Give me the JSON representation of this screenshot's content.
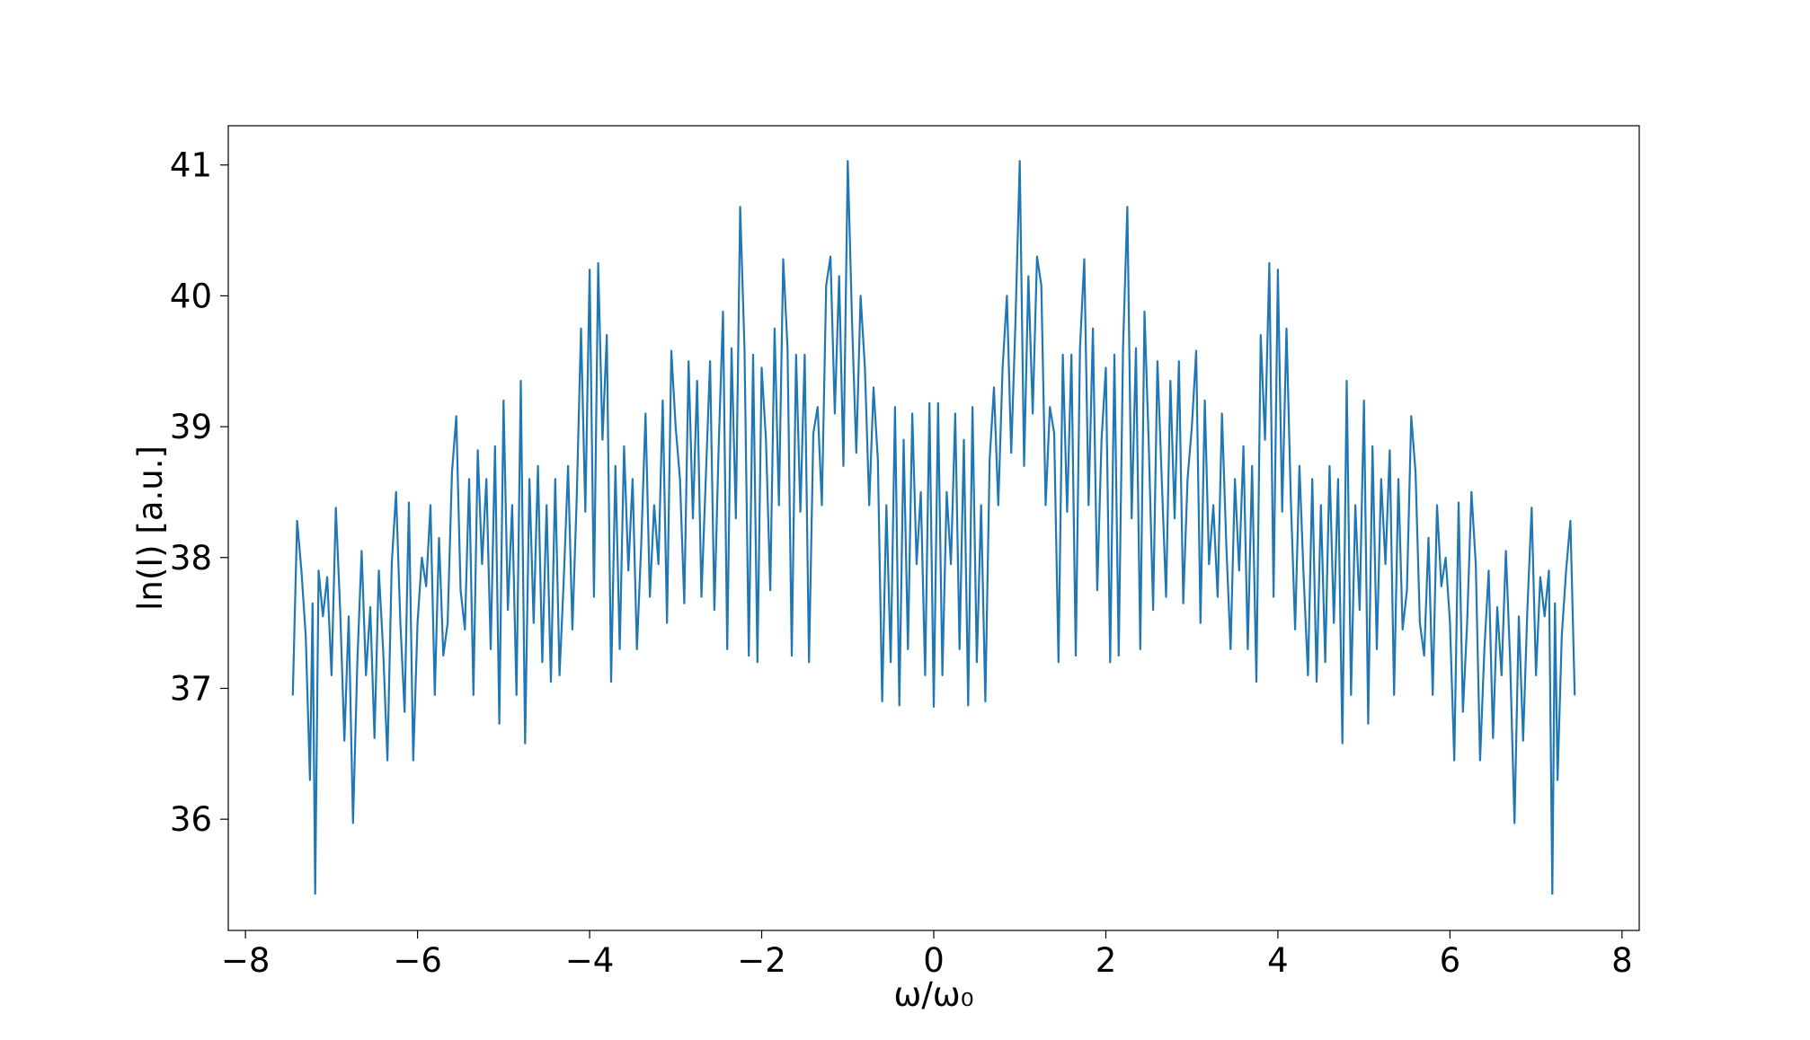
{
  "chart_data": {
    "type": "line",
    "title": "",
    "xlabel": "ω/ω₀",
    "ylabel": "ln(I) [a.u.]",
    "xlim": [
      -8.2,
      8.2
    ],
    "ylim": [
      35.15,
      41.3
    ],
    "xticks": [
      -8,
      -6,
      -4,
      -2,
      0,
      2,
      4,
      6,
      8
    ],
    "xtick_labels": [
      "−8",
      "−6",
      "−4",
      "−2",
      "0",
      "2",
      "4",
      "6",
      "8"
    ],
    "yticks": [
      36,
      37,
      38,
      39,
      40,
      41
    ],
    "ytick_labels": [
      "36",
      "37",
      "38",
      "39",
      "40",
      "41"
    ],
    "grid": false,
    "legend": "none",
    "line_color": "#1f77b4",
    "series": [
      {
        "x": [
          -7.45,
          -7.4,
          -7.35,
          -7.3,
          -7.25,
          -7.22,
          -7.19,
          -7.15,
          -7.1,
          -7.05,
          -7.0,
          -6.95,
          -6.9,
          -6.85,
          -6.8,
          -6.75,
          -6.7,
          -6.65,
          -6.6,
          -6.55,
          -6.5,
          -6.45,
          -6.4,
          -6.35,
          -6.3,
          -6.25,
          -6.2,
          -6.15,
          -6.1,
          -6.05,
          -6.0,
          -5.95,
          -5.9,
          -5.85,
          -5.8,
          -5.75,
          -5.7,
          -5.65,
          -5.6,
          -5.55,
          -5.5,
          -5.45,
          -5.4,
          -5.35,
          -5.3,
          -5.25,
          -5.2,
          -5.15,
          -5.1,
          -5.05,
          -5.0,
          -4.95,
          -4.9,
          -4.85,
          -4.8,
          -4.75,
          -4.7,
          -4.65,
          -4.6,
          -4.55,
          -4.5,
          -4.45,
          -4.4,
          -4.35,
          -4.3,
          -4.25,
          -4.2,
          -4.15,
          -4.1,
          -4.05,
          -4.0,
          -3.95,
          -3.9,
          -3.85,
          -3.8,
          -3.75,
          -3.7,
          -3.65,
          -3.6,
          -3.55,
          -3.5,
          -3.45,
          -3.4,
          -3.35,
          -3.3,
          -3.25,
          -3.2,
          -3.15,
          -3.1,
          -3.05,
          -3.0,
          -2.95,
          -2.9,
          -2.85,
          -2.8,
          -2.75,
          -2.7,
          -2.65,
          -2.6,
          -2.55,
          -2.5,
          -2.45,
          -2.4,
          -2.35,
          -2.3,
          -2.25,
          -2.2,
          -2.15,
          -2.1,
          -2.05,
          -2.0,
          -1.95,
          -1.9,
          -1.85,
          -1.8,
          -1.75,
          -1.7,
          -1.65,
          -1.6,
          -1.55,
          -1.5,
          -1.45,
          -1.4,
          -1.35,
          -1.3,
          -1.25,
          -1.2,
          -1.15,
          -1.1,
          -1.05,
          -1.0,
          -0.95,
          -0.9,
          -0.85,
          -0.8,
          -0.75,
          -0.7,
          -0.65,
          -0.6,
          -0.55,
          -0.5,
          -0.45,
          -0.4,
          -0.35,
          -0.3,
          -0.25,
          -0.2,
          -0.15,
          -0.1,
          -0.05,
          0.0
        ],
        "y": [
          36.95,
          38.28,
          37.9,
          37.4,
          36.3,
          37.65,
          35.43,
          37.9,
          37.55,
          37.85,
          37.1,
          38.38,
          37.6,
          36.6,
          37.55,
          35.97,
          37.2,
          38.05,
          37.1,
          37.62,
          36.62,
          37.9,
          37.3,
          36.45,
          37.95,
          38.5,
          37.5,
          36.82,
          38.42,
          36.45,
          37.5,
          38.0,
          37.78,
          38.4,
          36.95,
          38.15,
          37.25,
          37.5,
          38.65,
          39.08,
          37.75,
          37.45,
          38.6,
          36.95,
          38.82,
          37.95,
          38.6,
          37.3,
          38.85,
          36.73,
          39.2,
          37.6,
          38.4,
          36.95,
          39.35,
          36.58,
          38.6,
          37.5,
          38.7,
          37.2,
          38.4,
          37.05,
          38.6,
          37.1,
          37.85,
          38.7,
          37.45,
          38.45,
          39.75,
          38.35,
          40.2,
          37.7,
          40.25,
          38.9,
          39.7,
          37.05,
          38.7,
          37.3,
          38.85,
          37.9,
          38.6,
          37.3,
          38.1,
          39.1,
          37.7,
          38.4,
          37.95,
          39.2,
          37.5,
          39.58,
          39.0,
          38.6,
          37.65,
          39.5,
          38.3,
          39.35,
          37.7,
          38.6,
          39.5,
          37.6,
          38.85,
          39.88,
          37.3,
          39.6,
          38.3,
          40.68,
          39.6,
          37.25,
          39.55,
          37.2,
          39.45,
          38.9,
          37.75,
          39.75,
          38.4,
          40.28,
          39.6,
          37.25,
          39.55,
          38.35,
          39.55,
          37.2,
          38.95,
          39.15,
          38.4,
          40.08,
          40.3,
          39.1,
          40.15,
          38.7,
          41.03,
          39.8,
          38.8,
          40.0,
          39.45,
          38.4,
          39.3,
          38.75,
          36.9,
          38.4,
          37.2,
          39.15,
          36.87,
          38.9,
          37.3,
          39.1,
          37.95,
          38.5,
          37.1,
          39.18,
          36.86
        ]
      }
    ]
  }
}
